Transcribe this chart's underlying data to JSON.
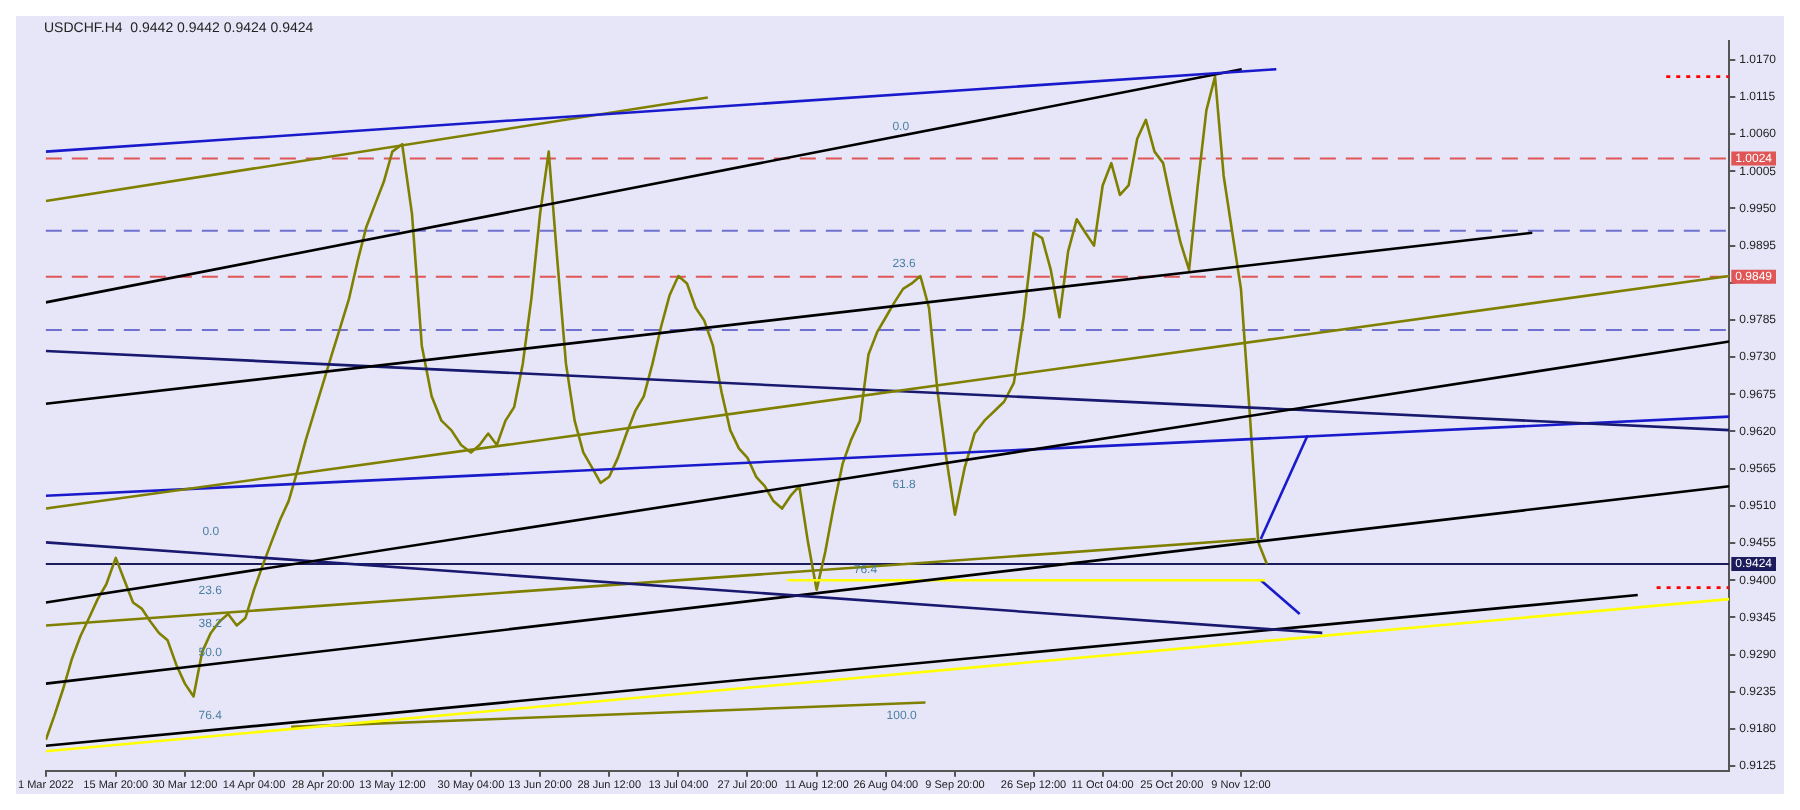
{
  "chart_data": {
    "type": "line",
    "title": "USDCHF.H4  0.9442 0.9442 0.9424 0.9424",
    "xlim": [
      "2022-03-01",
      "2023-02-21T02:00"
    ],
    "xticks": [
      {
        "value": "2022-03-01",
        "label": "1 Mar 2022"
      },
      {
        "value": "2022-03-15T20:00",
        "label": "15 Mar 20:00"
      },
      {
        "value": "2022-03-30T12:00",
        "label": "30 Mar 12:00"
      },
      {
        "value": "2022-04-14T04:00",
        "label": "14 Apr 04:00"
      },
      {
        "value": "2022-04-28T20:00",
        "label": "28 Apr 20:00"
      },
      {
        "value": "2022-05-13T12:00",
        "label": "13 May 12:00"
      },
      {
        "value": "2022-05-30T04:00",
        "label": "30 May 04:00"
      },
      {
        "value": "2022-06-13T20:00",
        "label": "13 Jun 20:00"
      },
      {
        "value": "2022-06-28T12:00",
        "label": "28 Jun 12:00"
      },
      {
        "value": "2022-07-13T04:00",
        "label": "13 Jul 04:00"
      },
      {
        "value": "2022-07-27T20:00",
        "label": "27 Jul 20:00"
      },
      {
        "value": "2022-08-11T12:00",
        "label": "11 Aug 12:00"
      },
      {
        "value": "2022-08-26T04:00",
        "label": "26 Aug 04:00"
      },
      {
        "value": "2022-09-09T20:00",
        "label": "9 Sep 20:00"
      },
      {
        "value": "2022-09-26T12:00",
        "label": "26 Sep 12:00"
      },
      {
        "value": "2022-10-11T04:00",
        "label": "11 Oct 04:00"
      },
      {
        "value": "2022-10-25T20:00",
        "label": "25 Oct 20:00"
      },
      {
        "value": "2022-11-09T12:00",
        "label": "9 Nov 12:00"
      }
    ],
    "ylim": [
      0.9118,
      1.0198
    ],
    "yticks": [
      {
        "value": 0.9125,
        "label": "0.9125"
      },
      {
        "value": 0.918,
        "label": "0.9180"
      },
      {
        "value": 0.9235,
        "label": "0.9235"
      },
      {
        "value": 0.929,
        "label": "0.9290"
      },
      {
        "value": 0.9345,
        "label": "0.9345"
      },
      {
        "value": 0.94,
        "label": "0.9400"
      },
      {
        "value": 0.9455,
        "label": "0.9455"
      },
      {
        "value": 0.951,
        "label": "0.9510"
      },
      {
        "value": 0.9565,
        "label": "0.9565"
      },
      {
        "value": 0.962,
        "label": "0.9620"
      },
      {
        "value": 0.9675,
        "label": "0.9675"
      },
      {
        "value": 0.973,
        "label": "0.9730"
      },
      {
        "value": 0.9785,
        "label": "0.9785"
      },
      {
        "value": 0.984,
        "label": null
      },
      {
        "value": 0.9895,
        "label": "0.9895"
      },
      {
        "value": 0.995,
        "label": "0.9950"
      },
      {
        "value": 1.0005,
        "label": "1.0005"
      },
      {
        "value": 1.006,
        "label": "1.0060"
      },
      {
        "value": 1.0115,
        "label": "1.0115"
      },
      {
        "value": 1.017,
        "label": "1.0170"
      }
    ],
    "grid": false,
    "legend": false,
    "marker": "none",
    "series": [
      {
        "color": "#1a1acd",
        "x": [
          "2022-03-01",
          "2022-11-17"
        ],
        "values": [
          1.0034,
          1.0156
        ]
      },
      {
        "color": "#000000",
        "x": [
          "2022-03-01",
          "2022-11-09T16:00"
        ],
        "values": [
          0.9811,
          1.0156
        ]
      },
      {
        "color": "#808000",
        "x": [
          "2022-03-01",
          "2022-07-19T10:00"
        ],
        "values": [
          0.9961,
          1.0114
        ]
      },
      {
        "color": "#000000",
        "x": [
          "2022-03-01",
          "2023-01-10T07:00"
        ],
        "values": [
          0.9661,
          0.9914
        ]
      },
      {
        "color": "#808000",
        "x": [
          "2022-03-01",
          "2023-02-21T02:00"
        ],
        "values": [
          0.9506,
          0.985
        ]
      },
      {
        "color": "#000000",
        "x": [
          "2022-03-01",
          "2023-02-21T02:00"
        ],
        "values": [
          0.9367,
          0.9753
        ]
      },
      {
        "color": "#191970",
        "x": [
          "2022-03-01",
          "2023-02-21T02:00"
        ],
        "values": [
          0.9739,
          0.9622
        ]
      },
      {
        "color": "#1a1acd",
        "x": [
          "2022-03-01",
          "2023-02-21T02:00"
        ],
        "values": [
          0.9525,
          0.9642
        ]
      },
      {
        "color": "#191970",
        "x": [
          "2022-03-01",
          "2022-11-26T18:00"
        ],
        "values": [
          0.9456,
          0.9322
        ]
      },
      {
        "color": "#808000",
        "x": [
          "2022-03-01",
          "2022-11-12T15:00"
        ],
        "values": [
          0.9333,
          0.9461
        ]
      },
      {
        "color": "#000000",
        "x": [
          "2022-03-01",
          "2023-02-21T02:00"
        ],
        "values": [
          0.9247,
          0.9539
        ]
      },
      {
        "color": "#ffff00",
        "x": [
          "2022-03-01",
          "2023-02-21T02:00"
        ],
        "values": [
          0.9147,
          0.9372
        ]
      },
      {
        "color": "#000000",
        "x": [
          "2022-03-01",
          "2023-02-01T16:00"
        ],
        "values": [
          0.9155,
          0.9378
        ]
      },
      {
        "color": "#808000",
        "x": [
          "2022-04-22T01:00",
          "2022-09-03T14:00"
        ],
        "values": [
          0.9183,
          0.9219
        ]
      },
      {
        "color": "#ffff00",
        "x": [
          "2022-08-05T06:00",
          "2022-11-14T15:00"
        ],
        "values": [
          0.94,
          0.94
        ]
      },
      {
        "color": "#1a1acd",
        "x": [
          "2022-11-13T17:00",
          "2022-11-23T15:00"
        ],
        "values": [
          0.9461,
          0.9614
        ]
      },
      {
        "color": "#1a1acd",
        "x": [
          "2022-11-13T17:00",
          "2022-11-21T23:00"
        ],
        "values": [
          0.94,
          0.935
        ]
      },
      {
        "color": "#ff0000",
        "line_style": "dotted",
        "x": [
          "2023-02-07T17:00",
          "2023-02-21T02:00"
        ],
        "values": [
          1.0145,
          1.0145
        ]
      },
      {
        "color": "#ff0000",
        "line_style": "dotted",
        "x": [
          "2023-02-05T16:00",
          "2023-02-21T02:00"
        ],
        "values": [
          0.9389,
          0.9389
        ]
      },
      {
        "color": "#808000",
        "x": [
          "2022-03-01T00:00",
          "2022-03-02T20:00",
          "2022-03-04T16:00",
          "2022-03-06T12:00",
          "2022-03-08T08:00",
          "2022-03-10T04:00",
          "2022-03-12T00:00",
          "2022-03-13T20:00",
          "2022-03-15T20:00",
          "2022-03-17T16:00",
          "2022-03-19T12:00",
          "2022-03-21T08:00",
          "2022-03-23T04:00",
          "2022-03-25T00:00",
          "2022-03-26T20:00",
          "2022-03-28T16:00",
          "2022-03-30T12:00",
          "2022-04-01T08:00",
          "2022-04-03T04:00",
          "2022-04-05T00:00",
          "2022-04-06T20:00",
          "2022-04-08T16:00",
          "2022-04-10T12:00",
          "2022-04-12T08:00",
          "2022-04-14T04:00",
          "2022-04-16T00:00",
          "2022-04-17T20:00",
          "2022-04-19T16:00",
          "2022-04-21T12:00",
          "2022-04-23T08:00",
          "2022-04-25T04:00",
          "2022-04-27T00:00",
          "2022-04-28T20:00",
          "2022-04-30T16:00",
          "2022-05-02T12:00",
          "2022-05-04T08:00",
          "2022-05-06T04:00",
          "2022-05-08T00:00",
          "2022-05-09T20:00",
          "2022-05-11T16:00",
          "2022-05-13T12:00",
          "2022-05-15T14:00",
          "2022-05-17T16:00",
          "2022-05-19T18:00",
          "2022-05-21T20:00",
          "2022-05-23T22:00",
          "2022-05-26T00:00",
          "2022-05-28T02:00",
          "2022-05-30T04:00",
          "2022-06-01T00:00",
          "2022-06-02T20:00",
          "2022-06-04T16:00",
          "2022-06-06T12:00",
          "2022-06-08T08:00",
          "2022-06-10T04:00",
          "2022-06-12T00:00",
          "2022-06-13T20:00",
          "2022-06-15T16:00",
          "2022-06-17T12:00",
          "2022-06-19T08:00",
          "2022-06-21T04:00",
          "2022-06-23T00:00",
          "2022-06-24T20:00",
          "2022-06-26T16:00",
          "2022-06-28T12:00",
          "2022-06-30T08:00",
          "2022-07-02T04:00",
          "2022-07-04T00:00",
          "2022-07-05T20:00",
          "2022-07-07T16:00",
          "2022-07-09T12:00",
          "2022-07-11T08:00",
          "2022-07-13T04:00",
          "2022-07-15T00:00",
          "2022-07-16T20:00",
          "2022-07-18T16:00",
          "2022-07-20T12:00",
          "2022-07-22T08:00",
          "2022-07-24T04:00",
          "2022-07-26T00:00",
          "2022-07-27T20:00",
          "2022-07-29T16:00",
          "2022-07-31T12:00",
          "2022-08-02T08:00",
          "2022-08-04T04:00",
          "2022-08-06T00:00",
          "2022-08-07T20:00",
          "2022-08-09T16:00",
          "2022-08-11T12:00",
          "2022-08-13T08:00",
          "2022-08-15T04:00",
          "2022-08-17T00:00",
          "2022-08-18T20:00",
          "2022-08-20T16:00",
          "2022-08-22T12:00",
          "2022-08-24T08:00",
          "2022-08-26T04:00",
          "2022-08-28T00:00",
          "2022-08-29T20:00",
          "2022-08-31T16:00",
          "2022-09-02T12:00",
          "2022-09-04T08:00",
          "2022-09-06T04:00",
          "2022-09-08T00:00",
          "2022-09-09T20:00",
          "2022-09-11T22:00",
          "2022-09-14T00:00",
          "2022-09-16T02:00",
          "2022-09-18T04:00",
          "2022-09-20T06:00",
          "2022-09-22T08:00",
          "2022-09-24T10:00",
          "2022-09-26T12:00",
          "2022-09-28T08:00",
          "2022-09-30T04:00",
          "2022-10-02T00:00",
          "2022-10-03T20:00",
          "2022-10-05T16:00",
          "2022-10-07T12:00",
          "2022-10-09T08:00",
          "2022-10-11T04:00",
          "2022-10-13T00:00",
          "2022-10-14T20:00",
          "2022-10-16T16:00",
          "2022-10-18T12:00",
          "2022-10-20T08:00",
          "2022-10-22T04:00",
          "2022-10-24T00:00",
          "2022-10-25T20:00",
          "2022-10-27T16:00",
          "2022-10-29T12:00",
          "2022-10-31T08:00",
          "2022-11-02T04:00",
          "2022-11-04T00:00",
          "2022-11-05T20:00",
          "2022-11-07T16:00",
          "2022-11-09T12:00",
          "2022-11-11T08:00",
          "2022-11-13T04:00",
          "2022-11-15T00:00"
        ],
        "values": [
          0.9164,
          0.92,
          0.9239,
          0.9283,
          0.9317,
          0.9344,
          0.9372,
          0.9394,
          0.9433,
          0.94,
          0.9367,
          0.9358,
          0.9339,
          0.9322,
          0.9311,
          0.9275,
          0.9247,
          0.9228,
          0.9294,
          0.9322,
          0.9339,
          0.935,
          0.9333,
          0.9344,
          0.9386,
          0.9422,
          0.9456,
          0.9489,
          0.9517,
          0.9561,
          0.9608,
          0.965,
          0.9692,
          0.9734,
          0.9775,
          0.9817,
          0.9873,
          0.9923,
          0.9956,
          0.9989,
          1.0034,
          1.0045,
          0.9942,
          0.9747,
          0.9672,
          0.9636,
          0.9622,
          0.96,
          0.9589,
          0.96,
          0.9617,
          0.96,
          0.9636,
          0.9656,
          0.972,
          0.9817,
          0.9942,
          1.0034,
          0.9873,
          0.972,
          0.9636,
          0.9589,
          0.9567,
          0.9544,
          0.9553,
          0.9581,
          0.9617,
          0.965,
          0.9672,
          0.972,
          0.9775,
          0.9822,
          0.985,
          0.9839,
          0.9803,
          0.9784,
          0.9747,
          0.9678,
          0.9622,
          0.9595,
          0.9581,
          0.9553,
          0.9539,
          0.9517,
          0.9506,
          0.9525,
          0.9539,
          0.9456,
          0.9386,
          0.9442,
          0.9511,
          0.9572,
          0.9608,
          0.9636,
          0.9734,
          0.9767,
          0.9789,
          0.9811,
          0.9831,
          0.9839,
          0.985,
          0.9803,
          0.9678,
          0.9581,
          0.9497,
          0.9567,
          0.9617,
          0.9636,
          0.965,
          0.9664,
          0.9692,
          0.9789,
          0.9914,
          0.9906,
          0.9859,
          0.9789,
          0.9886,
          0.9934,
          0.9914,
          0.9895,
          0.9984,
          1.0017,
          0.997,
          0.9984,
          1.0053,
          1.0081,
          1.0034,
          1.0017,
          0.9956,
          0.99,
          0.9859,
          0.9984,
          1.0095,
          1.0145,
          0.9998,
          0.9914,
          0.9831,
          0.965,
          0.9456,
          0.9424
        ]
      }
    ],
    "ref_lines": [
      {
        "axis": "y",
        "value": 1.0024,
        "label": "1.0024",
        "color": "#e05555",
        "line_style": "dashed"
      },
      {
        "axis": "y",
        "value": 0.9849,
        "label": "0.9849",
        "color": "#e05555",
        "line_style": "dashed"
      },
      {
        "axis": "y",
        "value": 0.9917,
        "color": "#7070d0",
        "line_style": "dashed"
      },
      {
        "axis": "y",
        "value": 0.977,
        "color": "#7070d0",
        "line_style": "dashed"
      },
      {
        "axis": "y",
        "value": 0.9424,
        "label": "0.9424",
        "color": "#1c1c5c",
        "line_style": "solid"
      }
    ],
    "annotations": [
      "0.0",
      "23.6",
      "61.8",
      "76.4",
      "100.0",
      "0.0",
      "23.6",
      "38.2",
      "50.0",
      "76.4"
    ]
  }
}
